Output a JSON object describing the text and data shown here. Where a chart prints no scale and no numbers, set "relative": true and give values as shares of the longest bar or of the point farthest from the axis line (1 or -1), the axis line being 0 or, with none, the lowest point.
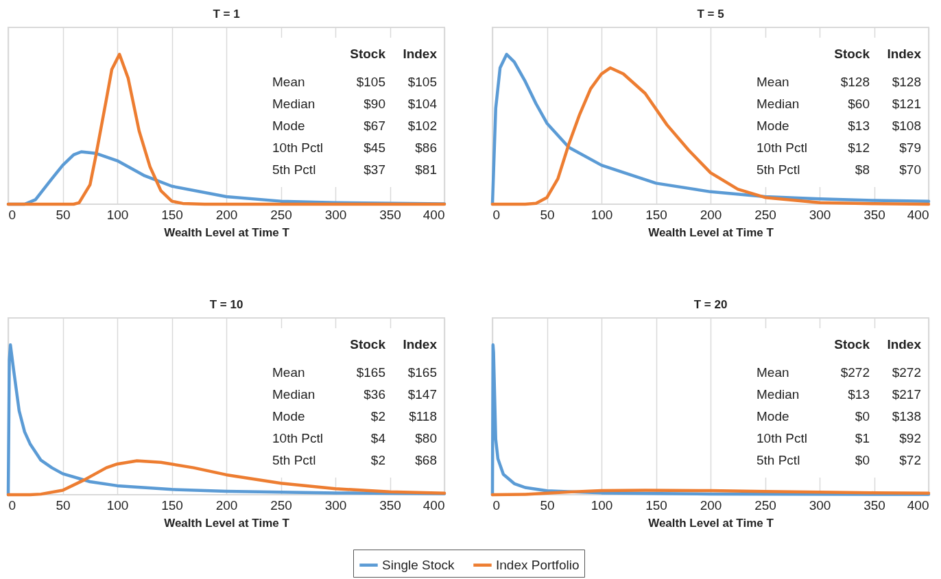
{
  "chart_data": [
    {
      "type": "line",
      "title": "T = 1",
      "xlabel": "Wealth Level at Time T",
      "relative": true,
      "xlim": [
        0,
        400
      ],
      "xticks": [
        0,
        50,
        100,
        150,
        200,
        250,
        300,
        350,
        400
      ],
      "grid": "x",
      "tick_labels": "x",
      "legend": "bottom",
      "annotations": [
        "Stock",
        "Index",
        "Mean",
        "$105",
        "$105",
        "Median",
        "$90",
        "$104",
        "Mode",
        "$67",
        "$102",
        "10th Pctl",
        "$45",
        "$86",
        "5th Pctl",
        "$37",
        "$81"
      ],
      "series": [
        {
          "name": "Single Stock",
          "color": "#5b9bd5",
          "x": [
            0,
            15,
            25,
            40,
            50,
            60,
            67,
            80,
            100,
            125,
            150,
            200,
            250,
            300,
            400
          ],
          "values": [
            0,
            0,
            0.03,
            0.17,
            0.26,
            0.33,
            0.35,
            0.34,
            0.29,
            0.19,
            0.12,
            0.05,
            0.02,
            0.01,
            0.002
          ]
        },
        {
          "name": "Index Portfolio",
          "color": "#ed7d31",
          "x": [
            0,
            60,
            65,
            75,
            80,
            90,
            95,
            102,
            110,
            120,
            130,
            140,
            150,
            160,
            180,
            400
          ],
          "values": [
            0,
            0,
            0.01,
            0.13,
            0.31,
            0.7,
            0.9,
            1,
            0.84,
            0.49,
            0.25,
            0.09,
            0.02,
            0.005,
            0,
            0
          ]
        }
      ]
    },
    {
      "type": "line",
      "title": "T = 5",
      "xlabel": "Wealth Level at Time T",
      "relative": true,
      "xlim": [
        0,
        400
      ],
      "xticks": [
        0,
        50,
        100,
        150,
        200,
        250,
        300,
        350,
        400
      ],
      "grid": "x",
      "tick_labels": "x",
      "legend": "bottom",
      "annotations": [
        "Stock",
        "Index",
        "Mean",
        "$128",
        "$128",
        "Median",
        "$60",
        "$121",
        "Mode",
        "$13",
        "$108",
        "10th Pctl",
        "$12",
        "$79",
        "5th Pctl",
        "$8",
        "$70"
      ],
      "series": [
        {
          "name": "Single Stock",
          "color": "#5b9bd5",
          "x": [
            0,
            3,
            7,
            13,
            20,
            30,
            40,
            50,
            70,
            100,
            150,
            200,
            250,
            300,
            350,
            400
          ],
          "values": [
            0,
            0.64,
            0.91,
            1,
            0.95,
            0.82,
            0.67,
            0.54,
            0.38,
            0.26,
            0.14,
            0.083,
            0.05,
            0.035,
            0.025,
            0.019
          ]
        },
        {
          "name": "Index Portfolio",
          "color": "#ed7d31",
          "x": [
            0,
            30,
            40,
            50,
            60,
            70,
            80,
            90,
            100,
            108,
            120,
            140,
            160,
            180,
            200,
            225,
            250,
            300,
            350,
            400
          ],
          "values": [
            0,
            0,
            0.006,
            0.045,
            0.17,
            0.4,
            0.6,
            0.77,
            0.87,
            0.91,
            0.87,
            0.74,
            0.53,
            0.36,
            0.21,
            0.1,
            0.045,
            0.01,
            0.003,
            0
          ]
        }
      ]
    },
    {
      "type": "line",
      "title": "T = 10",
      "xlabel": "Wealth Level at Time T",
      "relative": true,
      "xlim": [
        0,
        400
      ],
      "xticks": [
        0,
        50,
        100,
        150,
        200,
        250,
        300,
        350,
        400
      ],
      "grid": "x",
      "tick_labels": "x",
      "legend": "bottom",
      "annotations": [
        "Stock",
        "Index",
        "Mean",
        "$165",
        "$165",
        "Median",
        "$36",
        "$147",
        "Mode",
        "$2",
        "$118",
        "10th Pctl",
        "$4",
        "$80",
        "5th Pctl",
        "$2",
        "$68"
      ],
      "series": [
        {
          "name": "Single Stock",
          "color": "#5b9bd5",
          "x": [
            0,
            1,
            2,
            5,
            10,
            15,
            20,
            30,
            40,
            50,
            75,
            100,
            150,
            200,
            300,
            400
          ],
          "values": [
            0,
            0.9,
            1,
            0.83,
            0.56,
            0.42,
            0.34,
            0.23,
            0.18,
            0.14,
            0.087,
            0.06,
            0.035,
            0.023,
            0.012,
            0.007
          ]
        },
        {
          "name": "Index Portfolio",
          "color": "#ed7d31",
          "x": [
            0,
            20,
            30,
            50,
            70,
            90,
            100,
            118,
            140,
            170,
            200,
            250,
            300,
            350,
            400
          ],
          "values": [
            0,
            0,
            0.004,
            0.03,
            0.1,
            0.18,
            0.205,
            0.226,
            0.216,
            0.18,
            0.133,
            0.077,
            0.04,
            0.019,
            0.01
          ]
        }
      ]
    },
    {
      "type": "line",
      "title": "T = 20",
      "xlabel": "Wealth Level at Time T",
      "relative": true,
      "xlim": [
        0,
        400
      ],
      "xticks": [
        0,
        50,
        100,
        150,
        200,
        250,
        300,
        350,
        400
      ],
      "grid": "x",
      "tick_labels": "x",
      "legend": "bottom",
      "annotations": [
        "Stock",
        "Index",
        "Mean",
        "$272",
        "$272",
        "Median",
        "$13",
        "$217",
        "Mode",
        "$0",
        "$138",
        "10th Pctl",
        "$1",
        "$92",
        "5th Pctl",
        "$0",
        "$72"
      ],
      "series": [
        {
          "name": "Single Stock",
          "color": "#5b9bd5",
          "x": [
            0,
            0.5,
            1,
            3,
            5,
            10,
            20,
            30,
            50,
            100,
            200,
            400
          ],
          "values": [
            0,
            1,
            0.95,
            0.37,
            0.24,
            0.136,
            0.074,
            0.048,
            0.026,
            0.012,
            0.005,
            0.002
          ]
        },
        {
          "name": "Index Portfolio",
          "color": "#ed7d31",
          "x": [
            0,
            30,
            50,
            75,
            100,
            140,
            200,
            250,
            300,
            350,
            400
          ],
          "values": [
            0,
            0.002,
            0.01,
            0.02,
            0.027,
            0.03,
            0.027,
            0.022,
            0.017,
            0.013,
            0.01
          ]
        }
      ]
    }
  ]
}
